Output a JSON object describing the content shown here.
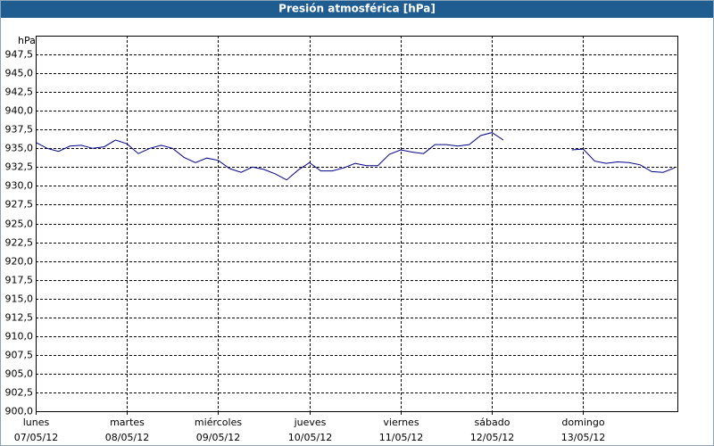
{
  "chart_data": {
    "type": "line",
    "title": "Presión atmosférica [hPa]",
    "y_label": "hPa",
    "x": [
      0,
      3,
      6,
      9,
      12,
      15,
      18,
      21,
      24,
      27,
      30,
      33,
      36,
      39,
      42,
      45,
      48,
      51,
      54,
      57,
      60,
      63,
      66,
      69,
      72,
      75,
      78,
      81,
      84,
      87,
      90,
      93,
      96,
      99,
      102,
      105,
      108,
      111,
      114,
      117,
      120,
      123,
      126,
      129,
      132,
      135,
      138,
      141,
      144,
      147,
      150,
      153,
      156,
      159,
      162,
      165,
      168
    ],
    "series": [
      {
        "name": "Presión",
        "color": "#00008b",
        "values": [
          935.8,
          935.0,
          934.6,
          935.3,
          935.4,
          935.0,
          935.2,
          936.1,
          935.6,
          934.3,
          935.0,
          935.4,
          935.0,
          933.8,
          933.1,
          933.7,
          933.4,
          932.3,
          931.8,
          932.5,
          932.2,
          931.6,
          930.8,
          932.1,
          933.1,
          932.0,
          932.0,
          932.4,
          933.0,
          932.7,
          932.7,
          934.2,
          934.8,
          934.5,
          934.3,
          935.5,
          935.5,
          935.3,
          935.5,
          936.7,
          937.1,
          936.1,
          null,
          null,
          null,
          null,
          null,
          934.8,
          934.9,
          933.3,
          933.0,
          933.2,
          933.1,
          932.8,
          931.9,
          931.8,
          932.4
        ]
      }
    ],
    "xlim": [
      0,
      169
    ],
    "xticks": [
      {
        "value": 0,
        "label": "lunes"
      },
      {
        "value": 24,
        "label": "martes"
      },
      {
        "value": 48,
        "label": "miércoles"
      },
      {
        "value": 72,
        "label": "jueves"
      },
      {
        "value": 96,
        "label": "viernes"
      },
      {
        "value": 120,
        "label": "sábado"
      },
      {
        "value": 144,
        "label": "domingo"
      }
    ],
    "xtick_dates": [
      "07/05/12",
      "08/05/12",
      "09/05/12",
      "10/05/12",
      "11/05/12",
      "12/05/12",
      "13/05/12"
    ],
    "ylim": [
      900,
      950
    ],
    "yticks": [
      {
        "value": 900,
        "label": "900,0"
      },
      {
        "value": 902.5,
        "label": "902,5"
      },
      {
        "value": 905,
        "label": "905,0"
      },
      {
        "value": 907.5,
        "label": "907,5"
      },
      {
        "value": 910,
        "label": "910,0"
      },
      {
        "value": 912.5,
        "label": "912,5"
      },
      {
        "value": 915,
        "label": "915,0"
      },
      {
        "value": 917.5,
        "label": "917,5"
      },
      {
        "value": 920,
        "label": "920,0"
      },
      {
        "value": 922.5,
        "label": "922,5"
      },
      {
        "value": 925,
        "label": "925,0"
      },
      {
        "value": 927.5,
        "label": "927,5"
      },
      {
        "value": 930,
        "label": "930,0"
      },
      {
        "value": 932.5,
        "label": "932,5"
      },
      {
        "value": 935,
        "label": "935,0"
      },
      {
        "value": 937.5,
        "label": "937,5"
      },
      {
        "value": 940,
        "label": "940,0"
      },
      {
        "value": 942.5,
        "label": "942,5"
      },
      {
        "value": 945,
        "label": "945,0"
      },
      {
        "value": 947.5,
        "label": "947,5"
      }
    ],
    "grid": true
  }
}
